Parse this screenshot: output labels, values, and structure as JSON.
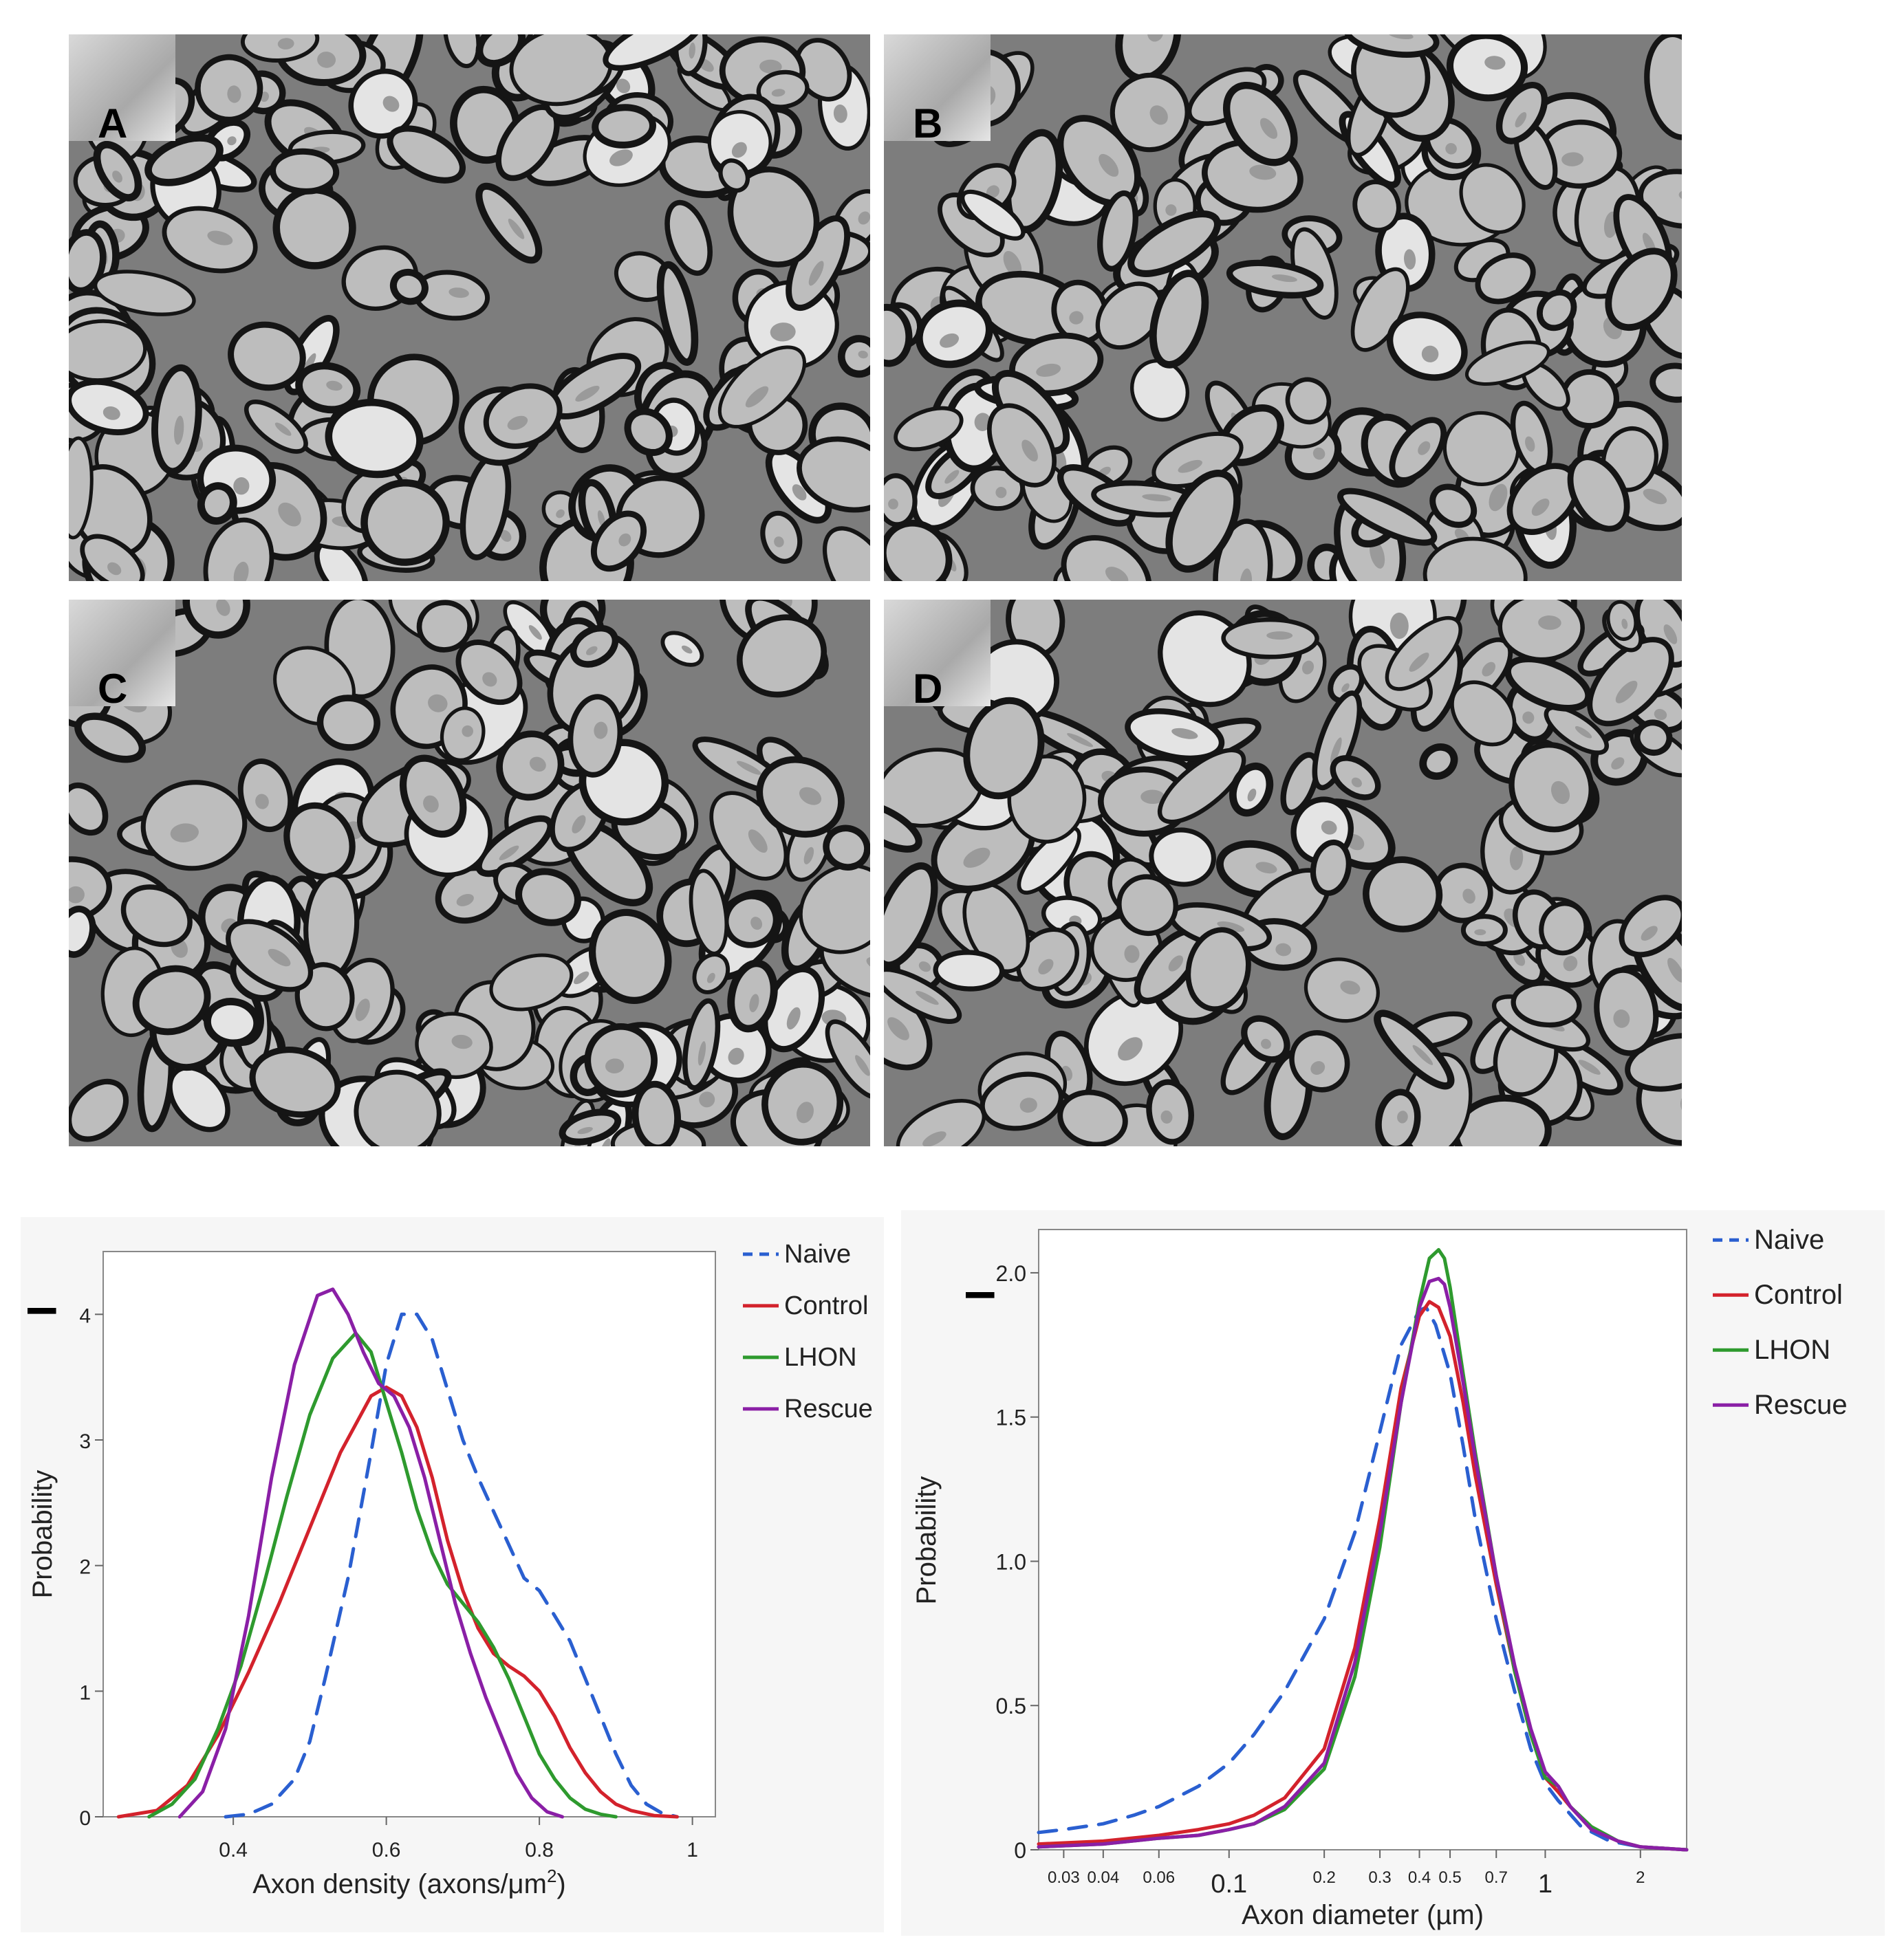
{
  "panels": [
    {
      "letter": "A"
    },
    {
      "letter": "B"
    },
    {
      "letter": "C"
    },
    {
      "letter": "D"
    }
  ],
  "colors": {
    "Naive": "#2a5fd0",
    "Control": "#d3222c",
    "LHON": "#2e9a2e",
    "Rescue": "#8a1fa6"
  },
  "chart_data": [
    {
      "type": "line",
      "xlabel_main": "Axon density (axons/μm",
      "xlabel_sup": "2",
      "xlabel_end": ")",
      "ylabel": "Probability",
      "panel_mark": "I",
      "xlim": [
        0.2,
        1.0
      ],
      "ylim": [
        0,
        4.5
      ],
      "xticks": [
        0.4,
        0.6,
        0.8,
        1
      ],
      "xtick_labels": [
        "0.4",
        "0.6",
        "0.8",
        "1"
      ],
      "yticks": [
        0,
        1,
        2,
        3,
        4
      ],
      "ytick_labels": [
        "0",
        "1",
        "2",
        "3",
        "4"
      ],
      "legend": [
        "Naive",
        "Control",
        "LHON",
        "Rescue"
      ],
      "series": [
        {
          "name": "Naive",
          "dashed": true,
          "x": [
            0.39,
            0.42,
            0.45,
            0.48,
            0.5,
            0.52,
            0.55,
            0.58,
            0.6,
            0.62,
            0.64,
            0.66,
            0.68,
            0.7,
            0.72,
            0.75,
            0.78,
            0.8,
            0.82,
            0.84,
            0.86,
            0.88,
            0.9,
            0.92,
            0.94,
            0.96,
            0.98
          ],
          "y": [
            0,
            0.02,
            0.1,
            0.3,
            0.6,
            1.1,
            1.9,
            2.9,
            3.6,
            4.0,
            4.0,
            3.8,
            3.4,
            3.0,
            2.7,
            2.3,
            1.9,
            1.8,
            1.6,
            1.4,
            1.1,
            0.8,
            0.5,
            0.25,
            0.1,
            0.03,
            0
          ]
        },
        {
          "name": "Control",
          "dashed": false,
          "x": [
            0.25,
            0.3,
            0.34,
            0.38,
            0.42,
            0.46,
            0.5,
            0.54,
            0.58,
            0.6,
            0.62,
            0.64,
            0.66,
            0.68,
            0.7,
            0.72,
            0.74,
            0.76,
            0.78,
            0.8,
            0.82,
            0.84,
            0.86,
            0.88,
            0.9,
            0.92,
            0.95,
            0.98
          ],
          "y": [
            0,
            0.05,
            0.25,
            0.65,
            1.15,
            1.7,
            2.3,
            2.9,
            3.35,
            3.42,
            3.35,
            3.1,
            2.7,
            2.2,
            1.8,
            1.5,
            1.3,
            1.2,
            1.12,
            1.0,
            0.8,
            0.55,
            0.35,
            0.2,
            0.1,
            0.05,
            0.01,
            0
          ]
        },
        {
          "name": "LHON",
          "dashed": false,
          "x": [
            0.29,
            0.32,
            0.35,
            0.38,
            0.41,
            0.44,
            0.47,
            0.5,
            0.53,
            0.56,
            0.58,
            0.6,
            0.62,
            0.64,
            0.66,
            0.68,
            0.7,
            0.72,
            0.74,
            0.76,
            0.78,
            0.8,
            0.82,
            0.84,
            0.86,
            0.88,
            0.9
          ],
          "y": [
            0,
            0.1,
            0.3,
            0.7,
            1.2,
            1.85,
            2.55,
            3.2,
            3.65,
            3.85,
            3.7,
            3.3,
            2.9,
            2.45,
            2.1,
            1.85,
            1.7,
            1.55,
            1.35,
            1.1,
            0.8,
            0.5,
            0.3,
            0.15,
            0.06,
            0.02,
            0
          ]
        },
        {
          "name": "Rescue",
          "dashed": false,
          "x": [
            0.33,
            0.36,
            0.39,
            0.42,
            0.45,
            0.48,
            0.51,
            0.53,
            0.55,
            0.57,
            0.59,
            0.61,
            0.63,
            0.65,
            0.67,
            0.69,
            0.71,
            0.73,
            0.75,
            0.77,
            0.79,
            0.81,
            0.83
          ],
          "y": [
            0,
            0.2,
            0.7,
            1.6,
            2.7,
            3.6,
            4.15,
            4.2,
            4.0,
            3.7,
            3.45,
            3.35,
            3.1,
            2.7,
            2.2,
            1.7,
            1.3,
            0.95,
            0.65,
            0.35,
            0.15,
            0.04,
            0
          ]
        }
      ]
    },
    {
      "type": "line",
      "xscale": "log",
      "xlabel": "Axon diameter (µm)",
      "ylabel": "Probability",
      "panel_mark": "I",
      "xlim": [
        0.025,
        2.8
      ],
      "ylim": [
        0,
        2.15
      ],
      "xticks_small": [
        0.03,
        0.04,
        0.06,
        0.2,
        0.3,
        0.4,
        0.5,
        0.7,
        2
      ],
      "xtick_small_labels": [
        "0.03",
        "0.04",
        "0.06",
        "0.2",
        "0.3",
        "0.4",
        "0.5",
        "0.7",
        "2"
      ],
      "xticks_big": [
        0.1,
        1
      ],
      "xtick_big_labels": [
        "0.1",
        "1"
      ],
      "yticks": [
        0,
        0.5,
        1.0,
        1.5,
        2.0
      ],
      "ytick_labels": [
        "0",
        "0.5",
        "1.0",
        "1.5",
        "2.0"
      ],
      "legend": [
        "Naive",
        "Control",
        "LHON",
        "Rescue"
      ],
      "series": [
        {
          "name": "Naive",
          "dashed": true,
          "x": [
            0.025,
            0.03,
            0.04,
            0.05,
            0.06,
            0.08,
            0.1,
            0.12,
            0.15,
            0.2,
            0.25,
            0.3,
            0.35,
            0.4,
            0.42,
            0.45,
            0.5,
            0.55,
            0.6,
            0.7,
            0.8,
            0.9,
            1.0,
            1.1,
            1.3,
            1.6,
            2.0,
            2.8
          ],
          "y": [
            0.06,
            0.07,
            0.09,
            0.12,
            0.15,
            0.22,
            0.3,
            0.4,
            0.55,
            0.8,
            1.1,
            1.45,
            1.75,
            1.87,
            1.88,
            1.82,
            1.65,
            1.4,
            1.15,
            0.8,
            0.55,
            0.35,
            0.23,
            0.17,
            0.08,
            0.03,
            0.01,
            0
          ]
        },
        {
          "name": "Control",
          "dashed": false,
          "x": [
            0.025,
            0.04,
            0.06,
            0.08,
            0.1,
            0.12,
            0.15,
            0.2,
            0.25,
            0.3,
            0.35,
            0.4,
            0.43,
            0.46,
            0.5,
            0.55,
            0.6,
            0.7,
            0.8,
            0.9,
            1.0,
            1.1,
            1.2,
            1.4,
            1.7,
            2.0,
            2.8
          ],
          "y": [
            0.02,
            0.03,
            0.05,
            0.07,
            0.09,
            0.12,
            0.18,
            0.35,
            0.7,
            1.15,
            1.6,
            1.85,
            1.9,
            1.88,
            1.78,
            1.55,
            1.3,
            0.92,
            0.62,
            0.4,
            0.25,
            0.2,
            0.15,
            0.07,
            0.03,
            0.01,
            0
          ]
        },
        {
          "name": "LHON",
          "dashed": false,
          "x": [
            0.025,
            0.04,
            0.06,
            0.08,
            0.1,
            0.12,
            0.15,
            0.2,
            0.25,
            0.3,
            0.35,
            0.4,
            0.43,
            0.46,
            0.48,
            0.5,
            0.55,
            0.6,
            0.7,
            0.8,
            0.9,
            1.0,
            1.1,
            1.2,
            1.4,
            1.7,
            2.0,
            2.8
          ],
          "y": [
            0.01,
            0.02,
            0.04,
            0.05,
            0.07,
            0.09,
            0.14,
            0.28,
            0.6,
            1.05,
            1.55,
            1.9,
            2.05,
            2.08,
            2.05,
            1.95,
            1.65,
            1.38,
            0.95,
            0.62,
            0.4,
            0.25,
            0.22,
            0.15,
            0.08,
            0.03,
            0.01,
            0
          ]
        },
        {
          "name": "Rescue",
          "dashed": false,
          "x": [
            0.025,
            0.04,
            0.06,
            0.08,
            0.1,
            0.12,
            0.15,
            0.2,
            0.25,
            0.3,
            0.35,
            0.4,
            0.43,
            0.46,
            0.48,
            0.5,
            0.55,
            0.6,
            0.7,
            0.8,
            0.9,
            1.0,
            1.1,
            1.2,
            1.4,
            1.7,
            2.0,
            2.8
          ],
          "y": [
            0.01,
            0.02,
            0.04,
            0.05,
            0.07,
            0.09,
            0.15,
            0.3,
            0.65,
            1.1,
            1.55,
            1.88,
            1.97,
            1.98,
            1.96,
            1.88,
            1.62,
            1.36,
            0.95,
            0.64,
            0.42,
            0.27,
            0.22,
            0.15,
            0.07,
            0.03,
            0.01,
            0
          ]
        }
      ]
    }
  ]
}
